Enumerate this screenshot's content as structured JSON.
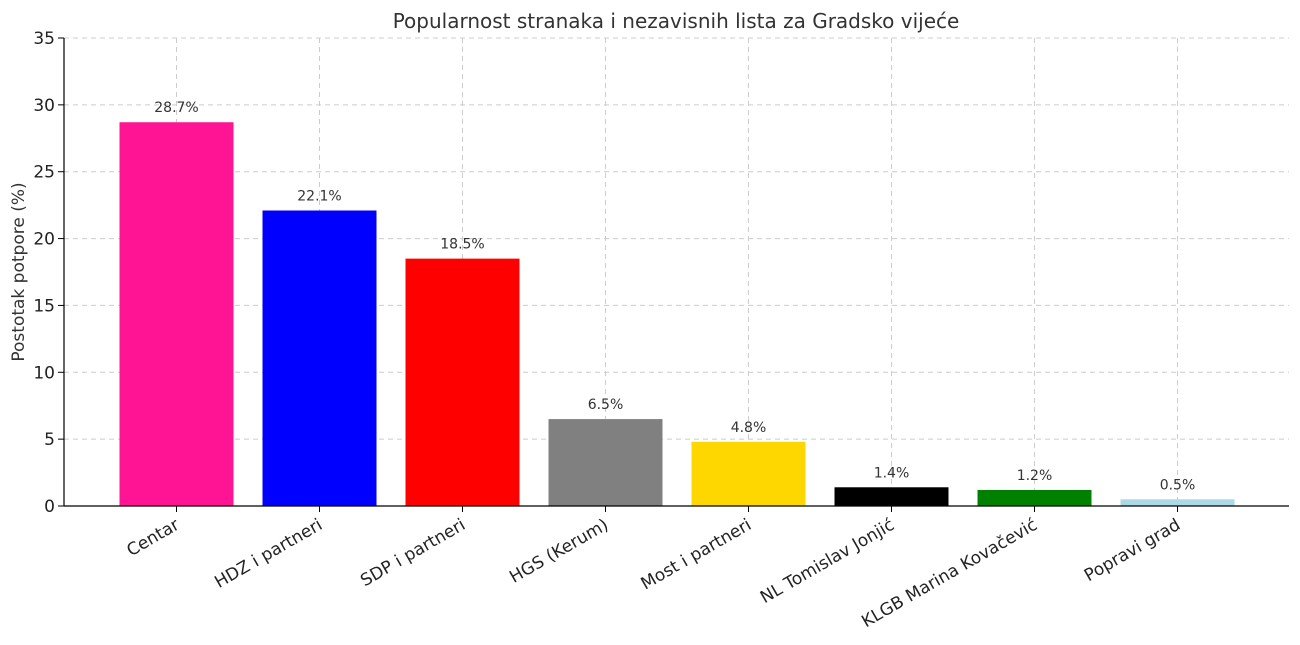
{
  "chart_data": {
    "type": "bar",
    "title": "Popularnost stranaka i nezavisnih lista za Gradsko vijeće",
    "xlabel": "",
    "ylabel": "Postotak potpore (%)",
    "ylim": [
      0,
      35
    ],
    "yticks": [
      0,
      5,
      10,
      15,
      20,
      25,
      30,
      35
    ],
    "grid": true,
    "categories": [
      "Centar",
      "HDZ i partneri",
      "SDP i partneri",
      "HGS (Kerum)",
      "Most i partneri",
      "NL Tomislav Jonjić",
      "KLGB Marina Kovačević",
      "Popravi grad"
    ],
    "values": [
      28.7,
      22.1,
      18.5,
      6.5,
      4.8,
      1.4,
      1.2,
      0.5
    ],
    "data_labels": [
      "28.7%",
      "22.1%",
      "18.5%",
      "6.5%",
      "4.8%",
      "1.4%",
      "1.2%",
      "0.5%"
    ],
    "colors": [
      "#ff1493",
      "#0000ff",
      "#ff0000",
      "#808080",
      "#ffd700",
      "#000000",
      "#008000",
      "#add8e6"
    ]
  }
}
